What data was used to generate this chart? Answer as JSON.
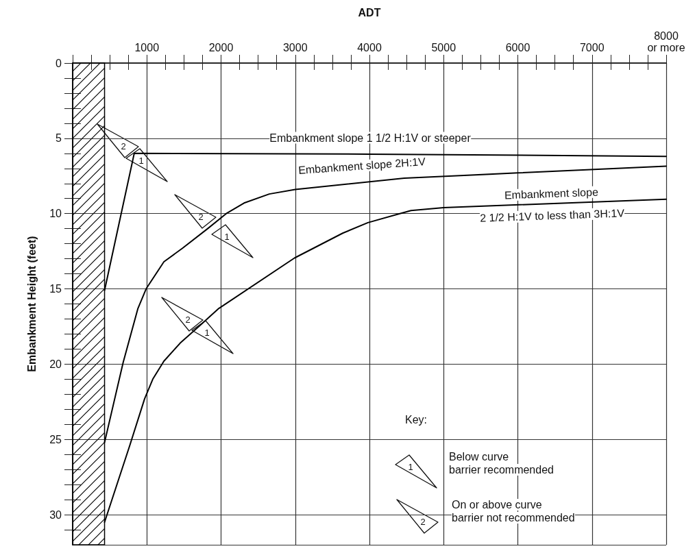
{
  "chart_data": {
    "type": "line",
    "xlabel": "ADT",
    "ylabel": "Embankment Height (feet)",
    "xlim": [
      0,
      8000
    ],
    "ylim": [
      32,
      0
    ],
    "xticks": [
      {
        "value": 0,
        "label": null
      },
      {
        "value": 250,
        "label": null
      },
      {
        "value": 500,
        "label": null
      },
      {
        "value": 750,
        "label": null
      },
      1000,
      {
        "value": 1250,
        "label": null
      },
      {
        "value": 1500,
        "label": null
      },
      {
        "value": 1750,
        "label": null
      },
      2000,
      {
        "value": 2250,
        "label": null
      },
      {
        "value": 2500,
        "label": null
      },
      {
        "value": 2750,
        "label": null
      },
      3000,
      {
        "value": 3250,
        "label": null
      },
      {
        "value": 3500,
        "label": null
      },
      {
        "value": 3750,
        "label": null
      },
      4000,
      {
        "value": 4250,
        "label": null
      },
      {
        "value": 4500,
        "label": null
      },
      {
        "value": 4750,
        "label": null
      },
      5000,
      {
        "value": 5250,
        "label": null
      },
      {
        "value": 5500,
        "label": null
      },
      {
        "value": 5750,
        "label": null
      },
      6000,
      {
        "value": 6250,
        "label": null
      },
      {
        "value": 6500,
        "label": null
      },
      {
        "value": 6750,
        "label": null
      },
      7000,
      {
        "value": 7250,
        "label": null
      },
      {
        "value": 7500,
        "label": null
      },
      {
        "value": 7750,
        "label": null
      },
      {
        "value": 8000,
        "label": "8000\nor more"
      }
    ],
    "yticks": [
      0,
      {
        "value": 1,
        "label": null
      },
      {
        "value": 2,
        "label": null
      },
      {
        "value": 3,
        "label": null
      },
      {
        "value": 4,
        "label": null
      },
      5,
      {
        "value": 6,
        "label": null
      },
      {
        "value": 7,
        "label": null
      },
      {
        "value": 8,
        "label": null
      },
      {
        "value": 9,
        "label": null
      },
      10,
      {
        "value": 11,
        "label": null
      },
      {
        "value": 12,
        "label": null
      },
      {
        "value": 13,
        "label": null
      },
      {
        "value": 14,
        "label": null
      },
      15,
      {
        "value": 16,
        "label": null
      },
      {
        "value": 17,
        "label": null
      },
      {
        "value": 18,
        "label": null
      },
      {
        "value": 19,
        "label": null
      },
      20,
      {
        "value": 21,
        "label": null
      },
      {
        "value": 22,
        "label": null
      },
      {
        "value": 23,
        "label": null
      },
      {
        "value": 24,
        "label": null
      },
      25,
      {
        "value": 26,
        "label": null
      },
      {
        "value": 27,
        "label": null
      },
      {
        "value": 28,
        "label": null
      },
      {
        "value": 29,
        "label": null
      },
      30,
      {
        "value": 31,
        "label": null
      }
    ],
    "grid": true,
    "marker": "none",
    "line_style": "solid",
    "series": [
      {
        "color": "#000000",
        "x": [
          430,
          830,
          4000,
          8000
        ],
        "values": [
          15.1,
          6.0,
          6.05,
          6.2
        ]
      },
      {
        "color": "#000000",
        "x": [
          430,
          680,
          880,
          990,
          1230,
          1480,
          1820,
          2070,
          2310,
          2650,
          3000,
          4470,
          6000,
          8000
        ],
        "values": [
          25.2,
          19.9,
          16.3,
          15.0,
          13.2,
          12.3,
          11.0,
          10.0,
          9.3,
          8.7,
          8.4,
          7.65,
          7.3,
          6.85
        ]
      },
      {
        "color": "#000000",
        "x": [
          430,
          770,
          970,
          1080,
          1230,
          1450,
          1700,
          1970,
          2990,
          3640,
          3980,
          4410,
          4560,
          5000,
          8000
        ],
        "values": [
          30.5,
          25.4,
          22.3,
          21.0,
          19.8,
          18.6,
          17.5,
          16.3,
          12.95,
          11.3,
          10.6,
          10.0,
          9.8,
          9.6,
          9.05
        ]
      }
    ],
    "bands": [
      {
        "axis": "x",
        "from": 0,
        "to": 430,
        "color": "#000000"
      }
    ],
    "annotations": [
      "Embankment slope 1 1/2 H:1V or steeper",
      "Embankment slope 2H:1V",
      "Embankment slope\n2 1/2 H:1V to less than 3H:1V",
      "2",
      "1",
      "2",
      "1",
      "2",
      "1",
      "Key:",
      "1",
      "Below curve\nbarrier recommended",
      "2",
      "On or above curve\nbarrier not recommended"
    ]
  }
}
